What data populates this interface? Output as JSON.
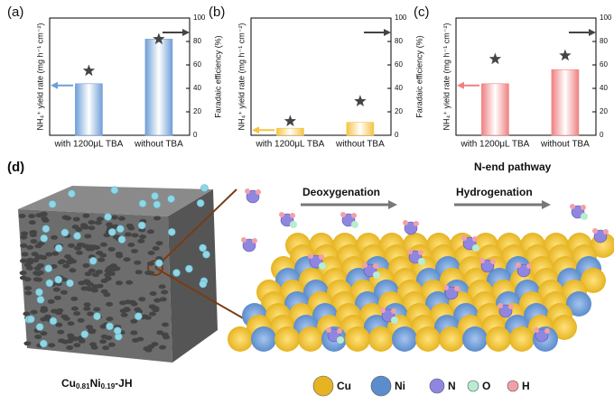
{
  "chart_data": [
    {
      "type": "bar",
      "panel": "(a)",
      "categories": [
        "with 1200μL  TBA",
        "without TBA"
      ],
      "ylabel": "NH₄⁺ yield rate (mg h⁻¹ cm⁻²)",
      "y2label": "Faradaic efficiency (%)",
      "ylim": [
        0,
        100
      ],
      "y2lim": [
        0,
        100
      ],
      "y2ticks": [
        0,
        20,
        40,
        60,
        80,
        100
      ],
      "series": [
        {
          "color": "#6f9fd8",
          "values": [
            44,
            82
          ]
        },
        {
          "color": "#444444",
          "axis": "y2",
          "values": [
            55,
            82
          ]
        }
      ]
    },
    {
      "type": "bar",
      "panel": "(b)",
      "categories": [
        "with 1200μL  TBA",
        "without TBA"
      ],
      "ylabel": "NH₄⁺ yield rate (mg h⁻¹ cm⁻²)",
      "y2label": "Faradaic efficiency (%)",
      "ylim": [
        0,
        100
      ],
      "y2lim": [
        0,
        100
      ],
      "y2ticks": [
        0,
        20,
        40,
        60,
        80,
        100
      ],
      "series": [
        {
          "color": "#f5c342",
          "values": [
            6,
            11
          ]
        },
        {
          "color": "#444444",
          "axis": "y2",
          "values": [
            12,
            29
          ]
        }
      ]
    },
    {
      "type": "bar",
      "panel": "(c)",
      "categories": [
        "with 1200μL  TBA",
        "without TBA"
      ],
      "ylabel": "NH₄⁺ yield rate (mg h⁻¹ cm⁻²)",
      "y2label": "Faradaic efficiency (%)",
      "ylim": [
        0,
        100
      ],
      "y2lim": [
        0,
        100
      ],
      "y2ticks": [
        0,
        20,
        40,
        60,
        80,
        100
      ],
      "series": [
        {
          "color": "#f08080",
          "values": [
            44,
            56
          ]
        },
        {
          "color": "#444444",
          "axis": "y2",
          "values": [
            65,
            68
          ]
        }
      ]
    }
  ],
  "panel_d": {
    "label": "(d)",
    "pathway": "N-end pathway",
    "step1": "Deoxygenation",
    "step2": "Hydrogenation",
    "material": [
      "Cu",
      "0.81",
      "Ni",
      "0.19",
      "-JH"
    ],
    "legend": [
      {
        "name": "Cu",
        "color": "#e6b422"
      },
      {
        "name": "Ni",
        "color": "#5b8ccc"
      },
      {
        "name": "N",
        "color": "#8f86e0"
      },
      {
        "name": "O",
        "color": "#b9ecd0"
      },
      {
        "name": "H",
        "color": "#f2a0a8"
      }
    ]
  }
}
